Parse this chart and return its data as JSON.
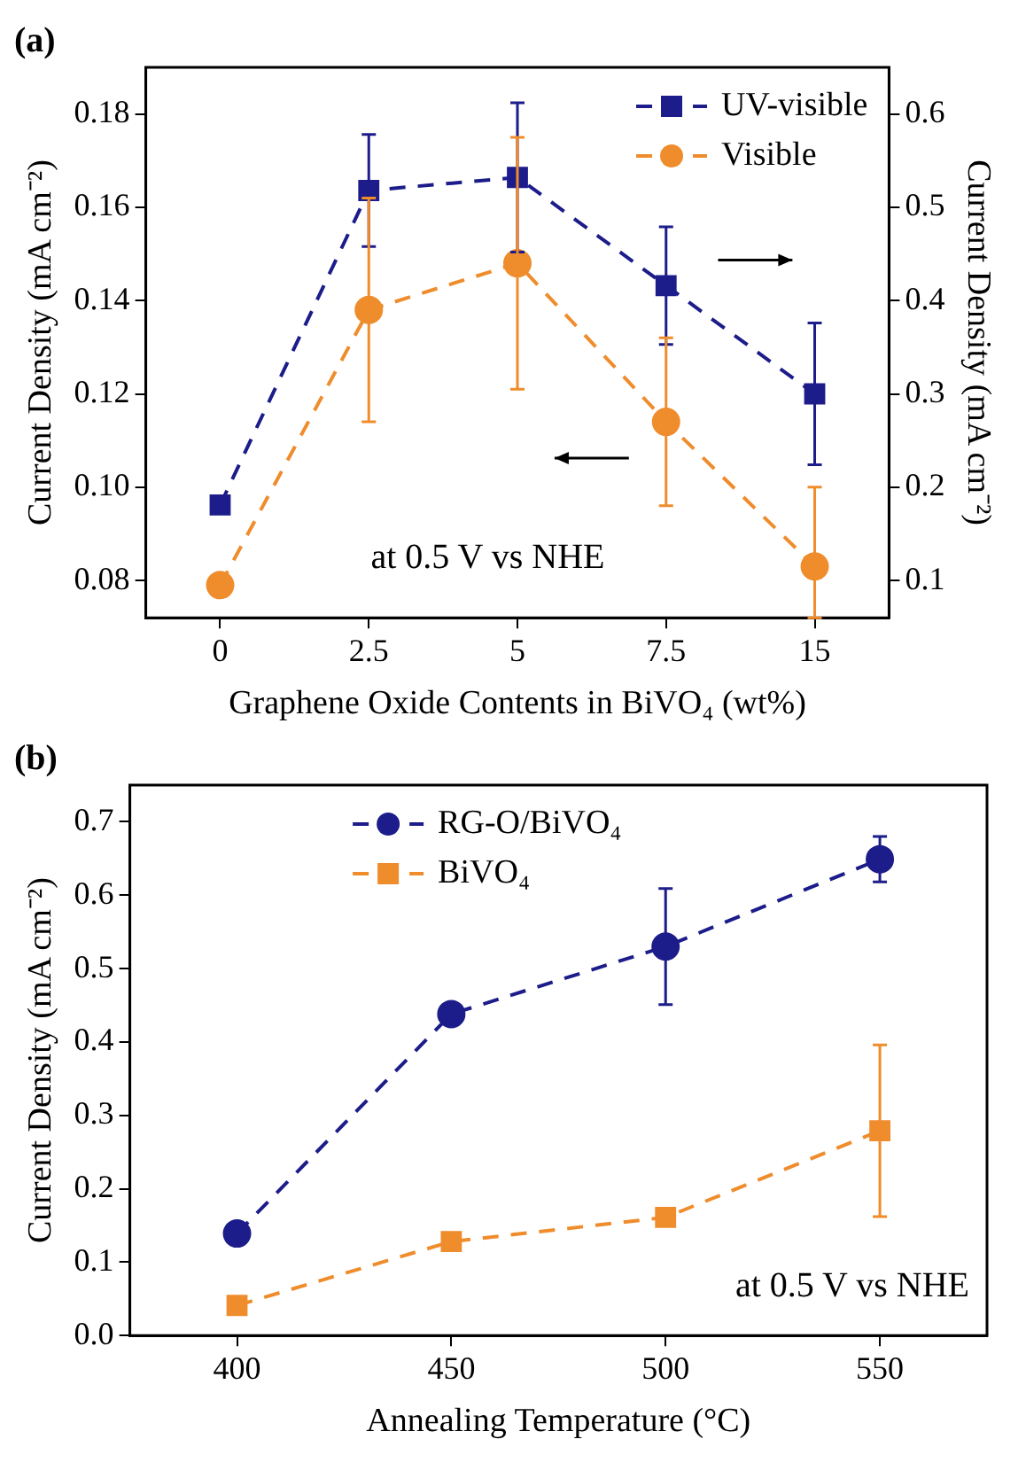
{
  "chart_data": [
    {
      "type": "line",
      "title": "(a)",
      "xlabel": "Graphene Oxide Contents in BiVO₄ (wt%)",
      "ylabel": "Current Density (mA cm⁻²)",
      "y2label": "Current Density (mA cm⁻²)",
      "categories": [
        "0",
        "2.5",
        "5",
        "7.5",
        "15"
      ],
      "series": [
        {
          "name": "UV-visible",
          "color": "#1c1c8a",
          "axis": "y2",
          "marker": "square",
          "values": [
            0.181,
            0.518,
            0.532,
            0.416,
            0.3
          ],
          "errors": [
            null,
            0.06,
            0.08,
            0.063,
            0.076
          ]
        },
        {
          "name": "Visible",
          "color": "#ef8c2c",
          "marker": "circle",
          "values": [
            0.079,
            0.138,
            0.148,
            0.114,
            0.083
          ],
          "errors": [
            null,
            0.024,
            0.027,
            0.018,
            [
              0.072,
              0.1
            ]
          ]
        }
      ],
      "ylim": [
        0.072,
        0.19
      ],
      "yticks": [
        0.08,
        {
          "value": 0.1,
          "label": "0.10"
        },
        0.12,
        0.14,
        0.16,
        0.18
      ],
      "y2lim": [
        0.06,
        0.65
      ],
      "y2ticks": [
        0.1,
        0.2,
        0.3,
        0.4,
        0.5,
        0.6
      ],
      "line_style": "dashed",
      "legend": "top right",
      "annotations": [
        "at 0.5 V vs NHE"
      ]
    },
    {
      "type": "line",
      "title": "(b)",
      "xlabel": "Annealing Temperature (°C)",
      "ylabel": "Current Density (mA cm⁻²)",
      "x": [
        400,
        450,
        500,
        550
      ],
      "series": [
        {
          "name": "RG-O/BiVO₄",
          "color": "#1c1c8a",
          "marker": "circle",
          "values": [
            0.139,
            0.438,
            0.53,
            0.649
          ],
          "errors": [
            null,
            null,
            0.079,
            0.031
          ]
        },
        {
          "name": "BiVO₄",
          "color": "#ef8c2c",
          "marker": "square",
          "values": [
            0.041,
            0.128,
            0.161,
            0.279
          ],
          "errors": [
            null,
            null,
            null,
            0.117
          ]
        }
      ],
      "xlim": [
        375,
        575
      ],
      "xticks": [
        400,
        450,
        500,
        550
      ],
      "ylim": [
        0,
        0.75
      ],
      "yticks": [
        {
          "value": 0,
          "label": "0.0"
        },
        0.1,
        0.2,
        0.3,
        0.4,
        0.5,
        0.6,
        0.7
      ],
      "line_style": "dashed",
      "legend": "top left",
      "annotations": [
        "at 0.5 V vs NHE"
      ]
    }
  ]
}
